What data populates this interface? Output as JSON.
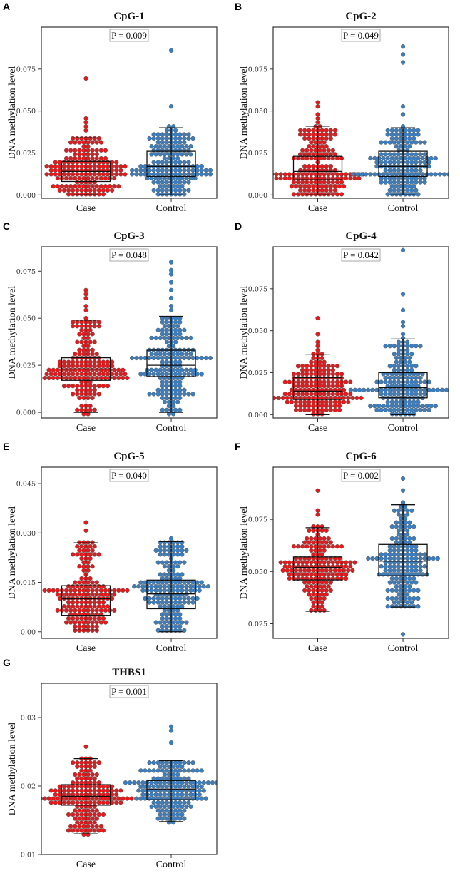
{
  "chart_data": {
    "type": "box+beeswarm",
    "colors": {
      "Case": "#e3191c",
      "Control": "#3b7ec0",
      "dot_edge": "#5a5a5a",
      "box": "#111111"
    },
    "panels": [
      {
        "panel_label": "A",
        "title": "CpG-1",
        "p_value_label": "P = 0.009",
        "ylabel": "DNA methylation level",
        "ylim": [
          -0.002,
          0.1
        ],
        "yticks": [
          {
            "value": 0,
            "label": "0.000"
          },
          {
            "value": 0.025,
            "label": "0.025"
          },
          {
            "value": 0.05,
            "label": "0.050"
          },
          {
            "value": 0.075,
            "label": "0.075"
          }
        ],
        "groups": [
          {
            "name": "Case",
            "stats": {
              "whisker_low": 0,
              "q1": 0.008,
              "median": 0.014,
              "q3": 0.02,
              "whisker_high": 0.034
            },
            "outliers": [
              0.038,
              0.04,
              0.043,
              0.045,
              0.069
            ]
          },
          {
            "name": "Control",
            "stats": {
              "whisker_low": 0,
              "q1": 0.011,
              "median": 0.017,
              "q3": 0.026,
              "whisker_high": 0.04
            },
            "outliers": [
              0.052,
              0.085
            ]
          }
        ]
      },
      {
        "panel_label": "B",
        "title": "CpG-2",
        "p_value_label": "P = 0.049",
        "ylabel": "DNA methylation level",
        "ylim": [
          -0.002,
          0.1
        ],
        "yticks": [
          {
            "value": 0,
            "label": "0.000"
          },
          {
            "value": 0.025,
            "label": "0.025"
          },
          {
            "value": 0.05,
            "label": "0.050"
          },
          {
            "value": 0.075,
            "label": "0.075"
          }
        ],
        "groups": [
          {
            "name": "Case",
            "stats": {
              "whisker_low": 0,
              "q1": 0.009,
              "median": 0.014,
              "q3": 0.023,
              "whisker_high": 0.041
            },
            "outliers": [
              0.043,
              0.046,
              0.049,
              0.053,
              0.056
            ]
          },
          {
            "name": "Control",
            "stats": {
              "whisker_low": 0,
              "q1": 0.011,
              "median": 0.017,
              "q3": 0.026,
              "whisker_high": 0.04
            },
            "outliers": [
              0.049,
              0.052,
              0.08,
              0.083,
              0.089
            ]
          }
        ]
      },
      {
        "panel_label": "C",
        "title": "CpG-3",
        "p_value_label": "P = 0.048",
        "ylabel": "DNA methylation level",
        "ylim": [
          -0.003,
          0.088
        ],
        "yticks": [
          {
            "value": 0,
            "label": "0.000"
          },
          {
            "value": 0.025,
            "label": "0.025"
          },
          {
            "value": 0.05,
            "label": "0.050"
          },
          {
            "value": 0.075,
            "label": "0.075"
          }
        ],
        "groups": [
          {
            "name": "Case",
            "stats": {
              "whisker_low": 0,
              "q1": 0.017,
              "median": 0.023,
              "q3": 0.029,
              "whisker_high": 0.049
            },
            "outliers": [
              0.051,
              0.054,
              0.057,
              0.06,
              0.063,
              0.065
            ]
          },
          {
            "name": "Control",
            "stats": {
              "whisker_low": 0,
              "q1": 0.019,
              "median": 0.025,
              "q3": 0.033,
              "whisker_high": 0.051
            },
            "outliers": [
              0.054,
              0.057,
              0.061,
              0.066,
              0.069,
              0.073,
              0.076,
              0.079
            ]
          }
        ]
      },
      {
        "panel_label": "D",
        "title": "CpG-4",
        "p_value_label": "P = 0.042",
        "ylabel": "DNA methylation level",
        "ylim": [
          -0.002,
          0.1
        ],
        "yticks": [
          {
            "value": 0,
            "label": "0.000"
          },
          {
            "value": 0.025,
            "label": "0.025"
          },
          {
            "value": 0.05,
            "label": "0.050"
          },
          {
            "value": 0.075,
            "label": "0.075"
          }
        ],
        "groups": [
          {
            "name": "Case",
            "stats": {
              "whisker_low": 0,
              "q1": 0.009,
              "median": 0.014,
              "q3": 0.022,
              "whisker_high": 0.036
            },
            "outliers": [
              0.039,
              0.041,
              0.044,
              0.047,
              0.058
            ]
          },
          {
            "name": "Control",
            "stats": {
              "whisker_low": 0,
              "q1": 0.01,
              "median": 0.016,
              "q3": 0.025,
              "whisker_high": 0.045
            },
            "outliers": [
              0.049,
              0.052,
              0.056,
              0.063,
              0.072,
              0.099
            ]
          }
        ]
      },
      {
        "panel_label": "E",
        "title": "CpG-5",
        "p_value_label": "P = 0.040",
        "ylabel": "DNA methylation level",
        "ylim": [
          -0.002,
          0.05
        ],
        "yticks": [
          {
            "value": 0,
            "label": "0.00"
          },
          {
            "value": 0.015,
            "label": "0.015"
          },
          {
            "value": 0.03,
            "label": "0.030"
          },
          {
            "value": 0.045,
            "label": "0.045"
          }
        ],
        "groups": [
          {
            "name": "Case",
            "stats": {
              "whisker_low": 0.0005,
              "q1": 0.005,
              "median": 0.01,
              "q3": 0.014,
              "whisker_high": 0.027
            },
            "outliers": [
              0.0305,
              0.033
            ]
          },
          {
            "name": "Control",
            "stats": {
              "whisker_low": 0,
              "q1": 0.007,
              "median": 0.0115,
              "q3": 0.0157,
              "whisker_high": 0.0274
            },
            "outliers": [
              0.0287
            ]
          }
        ]
      },
      {
        "panel_label": "F",
        "title": "CpG-6",
        "p_value_label": "P = 0.002",
        "ylabel": "DNA methylation level",
        "ylim": [
          0.018,
          0.1
        ],
        "yticks": [
          {
            "value": 0.025,
            "label": "0.025"
          },
          {
            "value": 0.05,
            "label": "0.050"
          },
          {
            "value": 0.075,
            "label": "0.075"
          }
        ],
        "groups": [
          {
            "name": "Case",
            "stats": {
              "whisker_low": 0.031,
              "q1": 0.046,
              "median": 0.052,
              "q3": 0.057,
              "whisker_high": 0.071
            },
            "outliers": [
              0.077,
              0.079,
              0.089
            ]
          },
          {
            "name": "Control",
            "stats": {
              "whisker_low": 0.033,
              "q1": 0.048,
              "median": 0.055,
              "q3": 0.063,
              "whisker_high": 0.082
            },
            "outliers": [
              0.02,
              0.083,
              0.088,
              0.095
            ]
          }
        ]
      },
      {
        "panel_label": "G",
        "title": "THBS1",
        "p_value_label": "P = 0.001",
        "ylabel": "DNA methylation level",
        "ylim": [
          0.01,
          0.035
        ],
        "yticks": [
          {
            "value": 0.01,
            "label": "0.01"
          },
          {
            "value": 0.02,
            "label": "0.02"
          },
          {
            "value": 0.03,
            "label": "0.03"
          }
        ],
        "groups": [
          {
            "name": "Case",
            "stats": {
              "whisker_low": 0.013,
              "q1": 0.0172,
              "median": 0.0185,
              "q3": 0.0202,
              "whisker_high": 0.024
            },
            "outliers": [
              0.026
            ]
          },
          {
            "name": "Control",
            "stats": {
              "whisker_low": 0.0148,
              "q1": 0.018,
              "median": 0.0195,
              "q3": 0.0208,
              "whisker_high": 0.0237
            },
            "outliers": [
              0.0263,
              0.028,
              0.0285
            ]
          }
        ]
      }
    ]
  }
}
